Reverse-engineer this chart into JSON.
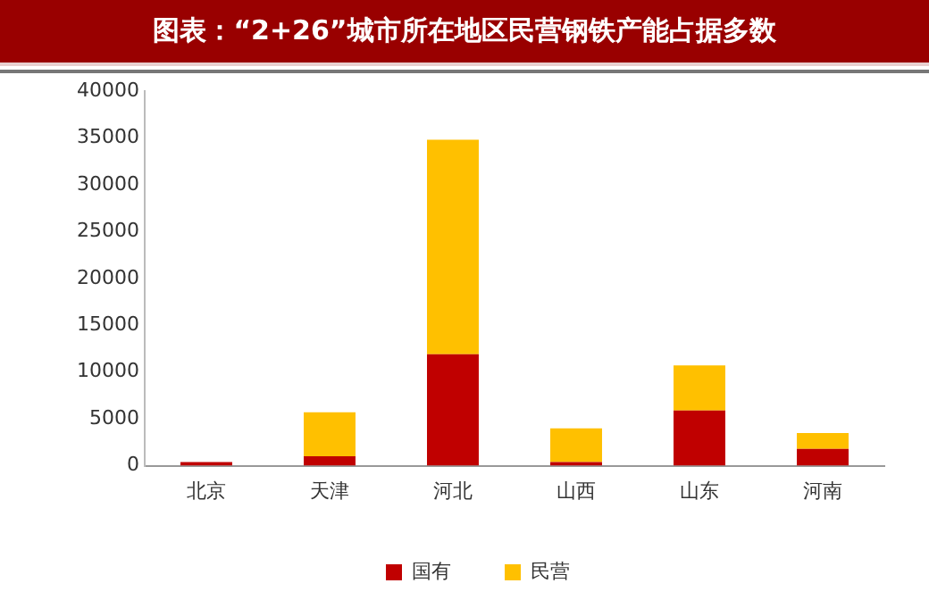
{
  "chart_data": {
    "type": "bar",
    "title": "图表：“2+26”城市所在地区民营钢铁产能占据多数",
    "categories": [
      "北京",
      "天津",
      "河北",
      "山西",
      "山东",
      "河南"
    ],
    "stacked": true,
    "legend": "bottom",
    "grid": false,
    "ylim": [
      0,
      40000
    ],
    "yticks": [
      0,
      5000,
      10000,
      15000,
      20000,
      25000,
      30000,
      35000,
      40000
    ],
    "series": [
      {
        "name": "国有",
        "color": "#c00000",
        "values": [
          400,
          1000,
          11900,
          400,
          5900,
          1800
        ]
      },
      {
        "name": "民营",
        "color": "#ffc000",
        "values": [
          0,
          4700,
          22900,
          3600,
          4800,
          1700
        ]
      }
    ]
  }
}
